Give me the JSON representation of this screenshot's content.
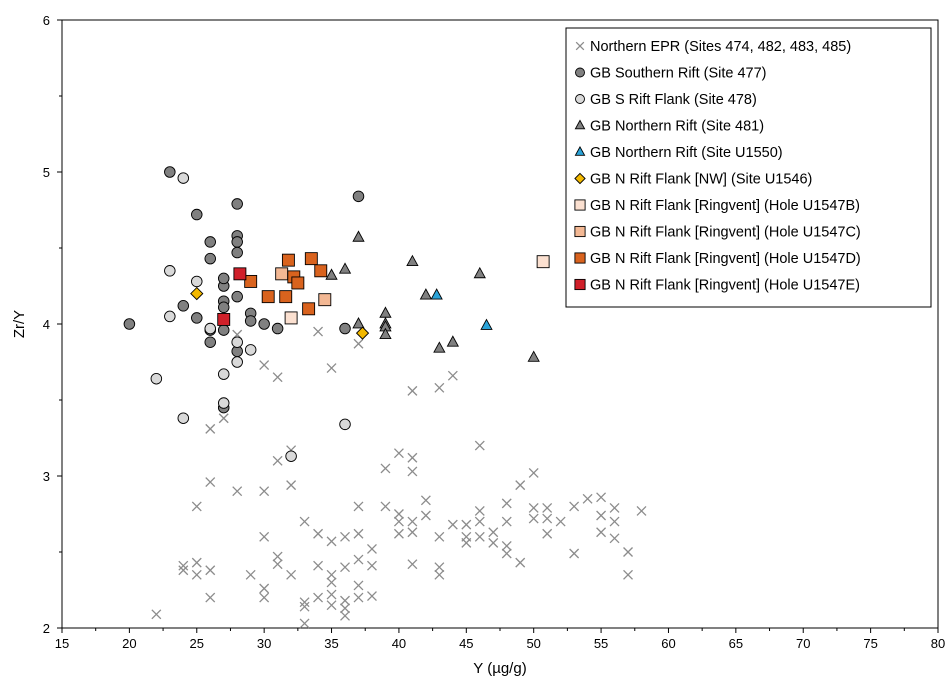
{
  "chart_data": {
    "type": "scatter",
    "xlabel": "Y (µg/g)",
    "ylabel": "Zr/Y",
    "xlim": [
      15,
      80
    ],
    "ylim": [
      2,
      6
    ],
    "xticks": [
      15,
      20,
      25,
      30,
      35,
      40,
      45,
      50,
      55,
      60,
      65,
      70,
      75,
      80
    ],
    "yticks": [
      2,
      3,
      4,
      5,
      6
    ],
    "grid": false,
    "legend_position": "top-right",
    "series": [
      {
        "name": "Northern EPR (Sites 474, 482, 483, 485)",
        "marker": "x",
        "color": "#8c8c8c",
        "points": [
          [
            22,
            2.09
          ],
          [
            24,
            2.38
          ],
          [
            24,
            2.41
          ],
          [
            25,
            2.43
          ],
          [
            25,
            2.8
          ],
          [
            25,
            2.35
          ],
          [
            26,
            2.38
          ],
          [
            26,
            2.2
          ],
          [
            26,
            2.96
          ],
          [
            26,
            3.31
          ],
          [
            27,
            3.38
          ],
          [
            28,
            2.9
          ],
          [
            28,
            3.93
          ],
          [
            29,
            2.35
          ],
          [
            30,
            2.6
          ],
          [
            30,
            2.9
          ],
          [
            30,
            2.26
          ],
          [
            30,
            2.2
          ],
          [
            30,
            3.73
          ],
          [
            31,
            3.65
          ],
          [
            31,
            3.1
          ],
          [
            31,
            2.47
          ],
          [
            31,
            2.42
          ],
          [
            32,
            3.17
          ],
          [
            32,
            2.94
          ],
          [
            32,
            2.35
          ],
          [
            33,
            2.7
          ],
          [
            33,
            2.17
          ],
          [
            33,
            2.14
          ],
          [
            33,
            2.03
          ],
          [
            34,
            2.2
          ],
          [
            34,
            2.62
          ],
          [
            34,
            3.95
          ],
          [
            34,
            2.41
          ],
          [
            35,
            3.71
          ],
          [
            35,
            2.57
          ],
          [
            35,
            2.35
          ],
          [
            35,
            2.3
          ],
          [
            35,
            2.22
          ],
          [
            35,
            2.15
          ],
          [
            36,
            2.4
          ],
          [
            36,
            2.18
          ],
          [
            36,
            2.13
          ],
          [
            36,
            2.08
          ],
          [
            36,
            2.6
          ],
          [
            37,
            2.8
          ],
          [
            37,
            2.45
          ],
          [
            37,
            2.28
          ],
          [
            37,
            3.87
          ],
          [
            37,
            2.62
          ],
          [
            37,
            2.2
          ],
          [
            38,
            2.52
          ],
          [
            38,
            2.21
          ],
          [
            38,
            2.41
          ],
          [
            39,
            2.8
          ],
          [
            39,
            3.05
          ],
          [
            40,
            2.62
          ],
          [
            40,
            2.7
          ],
          [
            40,
            2.75
          ],
          [
            40,
            3.15
          ],
          [
            41,
            3.56
          ],
          [
            41,
            2.42
          ],
          [
            41,
            2.7
          ],
          [
            41,
            2.63
          ],
          [
            41,
            3.03
          ],
          [
            41,
            3.12
          ],
          [
            42,
            2.74
          ],
          [
            42,
            2.84
          ],
          [
            43,
            2.6
          ],
          [
            43,
            2.4
          ],
          [
            43,
            2.35
          ],
          [
            43,
            3.58
          ],
          [
            44,
            2.68
          ],
          [
            44,
            3.66
          ],
          [
            45,
            2.68
          ],
          [
            45,
            2.6
          ],
          [
            45,
            2.56
          ],
          [
            46,
            2.7
          ],
          [
            46,
            2.77
          ],
          [
            46,
            2.6
          ],
          [
            46,
            3.2
          ],
          [
            47,
            2.63
          ],
          [
            47,
            2.56
          ],
          [
            48,
            2.7
          ],
          [
            48,
            2.54
          ],
          [
            48,
            2.49
          ],
          [
            48,
            2.82
          ],
          [
            49,
            2.43
          ],
          [
            49,
            2.94
          ],
          [
            50,
            2.79
          ],
          [
            50,
            2.72
          ],
          [
            50,
            3.02
          ],
          [
            51,
            2.72
          ],
          [
            51,
            2.62
          ],
          [
            51,
            2.79
          ],
          [
            52,
            2.7
          ],
          [
            53,
            2.49
          ],
          [
            53,
            2.8
          ],
          [
            54,
            2.85
          ],
          [
            55,
            2.86
          ],
          [
            55,
            2.63
          ],
          [
            55,
            2.74
          ],
          [
            56,
            2.79
          ],
          [
            56,
            2.59
          ],
          [
            56,
            2.7
          ],
          [
            57,
            2.5
          ],
          [
            57,
            2.35
          ],
          [
            58,
            2.77
          ]
        ]
      },
      {
        "name": "GB Southern Rift (Site 477)",
        "marker": "circle",
        "color": "#808080",
        "points": [
          [
            20,
            4.0
          ],
          [
            23,
            5.0
          ],
          [
            24,
            4.12
          ],
          [
            25,
            4.04
          ],
          [
            25,
            4.72
          ],
          [
            26,
            4.54
          ],
          [
            26,
            3.96
          ],
          [
            26,
            3.88
          ],
          [
            26,
            4.43
          ],
          [
            27,
            4.25
          ],
          [
            27,
            4.3
          ],
          [
            27,
            4.15
          ],
          [
            27,
            4.11
          ],
          [
            27,
            3.96
          ],
          [
            27,
            3.45
          ],
          [
            28,
            4.79
          ],
          [
            28,
            4.58
          ],
          [
            28,
            4.54
          ],
          [
            28,
            4.47
          ],
          [
            28,
            4.18
          ],
          [
            28,
            3.82
          ],
          [
            29,
            4.07
          ],
          [
            29,
            4.02
          ],
          [
            30,
            4.0
          ],
          [
            31,
            3.97
          ],
          [
            36,
            3.97
          ],
          [
            37,
            4.84
          ]
        ]
      },
      {
        "name": "GB S Rift Flank (Site 478)",
        "marker": "circle",
        "color": "#d9d9d9",
        "points": [
          [
            22,
            3.64
          ],
          [
            23,
            4.35
          ],
          [
            23,
            4.05
          ],
          [
            24,
            4.96
          ],
          [
            24,
            3.38
          ],
          [
            25,
            4.28
          ],
          [
            26,
            3.97
          ],
          [
            27,
            3.67
          ],
          [
            27,
            3.48
          ],
          [
            28,
            3.88
          ],
          [
            28,
            3.75
          ],
          [
            29,
            3.83
          ],
          [
            32,
            3.13
          ],
          [
            36,
            3.34
          ]
        ]
      },
      {
        "name": "GB Northern Rift (Site 481)",
        "marker": "triangle",
        "color": "#808080",
        "points": [
          [
            35,
            4.32
          ],
          [
            36,
            4.36
          ],
          [
            37,
            4.57
          ],
          [
            37,
            4.0
          ],
          [
            39,
            4.07
          ],
          [
            39,
            4.0
          ],
          [
            39,
            3.98
          ],
          [
            39,
            3.93
          ],
          [
            41,
            4.41
          ],
          [
            42,
            4.19
          ],
          [
            43,
            3.84
          ],
          [
            44,
            3.88
          ],
          [
            46,
            4.33
          ],
          [
            50,
            3.78
          ]
        ]
      },
      {
        "name": "GB Northern Rift (Site U1550)",
        "marker": "triangle",
        "color": "#2aa3d8",
        "points": [
          [
            42.8,
            4.19
          ],
          [
            46.5,
            3.99
          ]
        ]
      },
      {
        "name": "GB N Rift Flank [NW] (Site U1546)",
        "marker": "diamond",
        "color": "#f2b800",
        "points": [
          [
            25,
            4.2
          ],
          [
            37.3,
            3.94
          ]
        ]
      },
      {
        "name": "GB N Rift Flank [Ringvent] (Hole U1547B)",
        "marker": "square",
        "color": "#fbe0d0",
        "points": [
          [
            32,
            4.04
          ],
          [
            50.7,
            4.41
          ]
        ]
      },
      {
        "name": "GB N Rift Flank [Ringvent] (Hole U1547C)",
        "marker": "square",
        "color": "#f3b894",
        "points": [
          [
            31.3,
            4.33
          ],
          [
            34.5,
            4.16
          ]
        ]
      },
      {
        "name": "GB N Rift Flank [Ringvent] (Hole U1547D)",
        "marker": "square",
        "color": "#d9631e",
        "points": [
          [
            29,
            4.28
          ],
          [
            30.3,
            4.18
          ],
          [
            31.6,
            4.18
          ],
          [
            31.8,
            4.42
          ],
          [
            32.2,
            4.31
          ],
          [
            32.5,
            4.27
          ],
          [
            33.3,
            4.1
          ],
          [
            33.5,
            4.43
          ],
          [
            34.2,
            4.35
          ]
        ]
      },
      {
        "name": "GB N Rift Flank [Ringvent] (Hole U1547E)",
        "marker": "square",
        "color": "#d0202a",
        "points": [
          [
            27,
            4.03
          ],
          [
            28.2,
            4.33
          ]
        ]
      }
    ]
  }
}
